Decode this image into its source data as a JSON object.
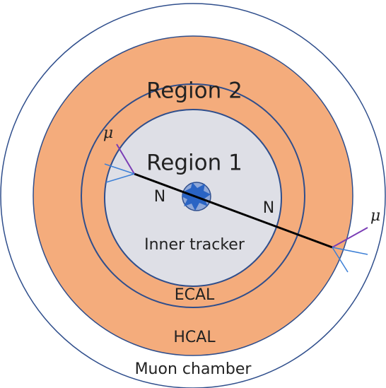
{
  "labels": {
    "region2": "Region 2",
    "region1": "Region 1",
    "muon_left": "μ",
    "muon_right": "μ",
    "n_left": "N",
    "n_right": "N",
    "inner_tracker": "Inner tracker",
    "ecal": "ECAL",
    "hcal": "HCAL",
    "muon_chamber": "Muon chamber"
  }
}
